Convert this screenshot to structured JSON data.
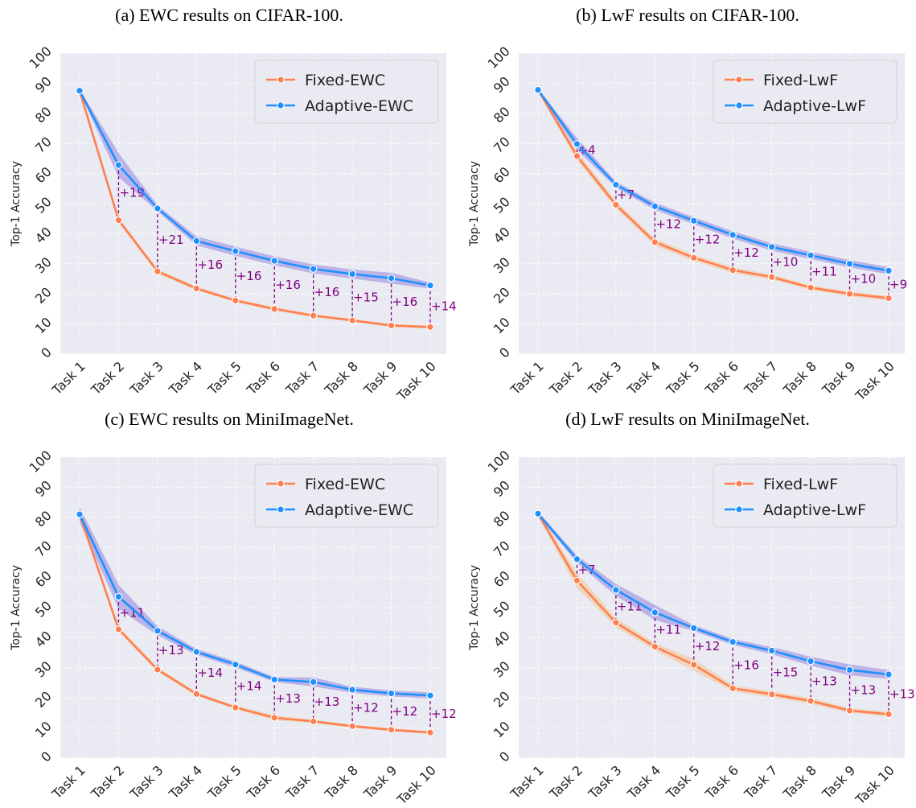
{
  "chart_data": [
    {
      "type": "line",
      "title": "(a) EWC results on CIFAR-100.",
      "xlabel": "",
      "ylabel": "Top-1 Accuracy",
      "ylim": [
        0,
        100
      ],
      "yticks": [
        "0",
        "10",
        "20",
        "30",
        "40",
        "50",
        "60",
        "70",
        "80",
        "90",
        "100"
      ],
      "categories": [
        "Task 1",
        "Task 2",
        "Task 3",
        "Task 4",
        "Task 5",
        "Task 6",
        "Task 7",
        "Task 8",
        "Task 9",
        "Task 10"
      ],
      "grid": true,
      "legend_position": "top-right",
      "colors": {
        "fixed": "#ff7f50",
        "adaptive": "#1e90ff",
        "band_fixed": "#f2c28f",
        "band_adaptive": "#8c7bdc",
        "delta": "#800080"
      },
      "series": [
        {
          "name": "Fixed-EWC",
          "values": [
            87.5,
            44.5,
            27.5,
            21.8,
            17.8,
            15.0,
            12.8,
            11.2,
            9.5,
            9.0
          ],
          "spread": [
            0,
            0.8,
            0.8,
            0.6,
            0.6,
            0.6,
            0.5,
            0.5,
            0.5,
            0.5
          ]
        },
        {
          "name": "Adaptive-EWC",
          "values": [
            87.5,
            62.8,
            48.4,
            37.6,
            34.2,
            31.0,
            28.3,
            26.6,
            25.2,
            22.8
          ],
          "spread": [
            0.5,
            4.0,
            1.0,
            1.5,
            1.5,
            1.5,
            1.5,
            1.5,
            1.8,
            1.0
          ]
        }
      ],
      "deltas": [
        "",
        "+19",
        "+21",
        "+16",
        "+16",
        "+16",
        "+16",
        "+15",
        "+16",
        "+14"
      ]
    },
    {
      "type": "line",
      "title": "(b) LwF results on CIFAR-100.",
      "xlabel": "",
      "ylabel": "Top-1 Accuracy",
      "ylim": [
        0,
        100
      ],
      "yticks": [
        "0",
        "10",
        "20",
        "30",
        "40",
        "50",
        "60",
        "70",
        "80",
        "90",
        "100"
      ],
      "categories": [
        "Task 1",
        "Task 2",
        "Task 3",
        "Task 4",
        "Task 5",
        "Task 6",
        "Task 7",
        "Task 8",
        "Task 9",
        "Task 10"
      ],
      "grid": true,
      "legend_position": "top-right",
      "colors": {
        "fixed": "#ff7f50",
        "adaptive": "#1e90ff",
        "band_fixed": "#f2c28f",
        "band_adaptive": "#8c7bdc",
        "delta": "#800080"
      },
      "series": [
        {
          "name": "Fixed-LwF",
          "values": [
            87.8,
            65.8,
            49.6,
            37.2,
            32.0,
            27.9,
            25.6,
            22.1,
            20.0,
            18.6
          ],
          "spread": [
            0.5,
            1.5,
            1.2,
            1.2,
            1.0,
            1.0,
            0.8,
            0.8,
            0.8,
            0.8
          ]
        },
        {
          "name": "Adaptive-LwF",
          "values": [
            87.8,
            69.8,
            56.3,
            49.1,
            44.3,
            39.6,
            35.6,
            32.8,
            30.0,
            27.7
          ],
          "spread": [
            0.5,
            2.0,
            1.0,
            1.2,
            1.2,
            1.2,
            1.2,
            1.2,
            1.2,
            1.2
          ]
        }
      ],
      "deltas": [
        "",
        "+4",
        "+7",
        "+12",
        "+12",
        "+12",
        "+10",
        "+11",
        "+10",
        "+9"
      ]
    },
    {
      "type": "line",
      "title": "(c) EWC results on MiniImageNet.",
      "xlabel": "",
      "ylabel": "Top-1 Accuracy",
      "ylim": [
        0,
        100
      ],
      "yticks": [
        "0",
        "10",
        "20",
        "30",
        "40",
        "50",
        "60",
        "70",
        "80",
        "90",
        "100"
      ],
      "categories": [
        "Task 1",
        "Task 2",
        "Task 3",
        "Task 4",
        "Task 5",
        "Task 6",
        "Task 7",
        "Task 8",
        "Task 9",
        "Task 10"
      ],
      "grid": true,
      "legend_position": "top-right",
      "colors": {
        "fixed": "#ff7f50",
        "adaptive": "#1e90ff",
        "band_fixed": "#f2c28f",
        "band_adaptive": "#8c7bdc",
        "delta": "#800080"
      },
      "series": [
        {
          "name": "Fixed-EWC",
          "values": [
            81.0,
            42.8,
            29.4,
            21.3,
            16.8,
            13.4,
            12.2,
            10.6,
            9.4,
            8.5
          ],
          "spread": [
            1.0,
            0.8,
            0.8,
            0.6,
            0.6,
            0.8,
            0.6,
            0.5,
            0.5,
            0.5
          ]
        },
        {
          "name": "Adaptive-EWC",
          "values": [
            81.0,
            53.6,
            42.3,
            35.3,
            31.1,
            26.1,
            25.3,
            22.7,
            21.5,
            20.8
          ],
          "spread": [
            2.5,
            4.0,
            1.5,
            1.0,
            1.0,
            0.8,
            1.5,
            1.0,
            1.0,
            1.0
          ]
        }
      ],
      "deltas": [
        "",
        "+11",
        "+13",
        "+14",
        "+14",
        "+13",
        "+13",
        "+12",
        "+12",
        "+12"
      ]
    },
    {
      "type": "line",
      "title": "(d) LwF results on MiniImageNet.",
      "xlabel": "",
      "ylabel": "Top-1 Accuracy",
      "ylim": [
        0,
        100
      ],
      "yticks": [
        "0",
        "10",
        "20",
        "30",
        "40",
        "50",
        "60",
        "70",
        "80",
        "90",
        "100"
      ],
      "categories": [
        "Task 1",
        "Task 2",
        "Task 3",
        "Task 4",
        "Task 5",
        "Task 6",
        "Task 7",
        "Task 8",
        "Task 9",
        "Task 10"
      ],
      "grid": true,
      "legend_position": "top-right",
      "colors": {
        "fixed": "#ff7f50",
        "adaptive": "#1e90ff",
        "band_fixed": "#f2c28f",
        "band_adaptive": "#8c7bdc",
        "delta": "#800080"
      },
      "series": [
        {
          "name": "Fixed-LwF",
          "values": [
            81.2,
            59.0,
            45.0,
            37.0,
            31.0,
            23.2,
            21.2,
            19.0,
            15.8,
            14.6
          ],
          "spread": [
            0.8,
            2.5,
            1.5,
            1.2,
            2.0,
            1.0,
            1.0,
            1.0,
            0.8,
            0.8
          ]
        },
        {
          "name": "Adaptive-LwF",
          "values": [
            81.2,
            66.1,
            55.9,
            48.4,
            43.2,
            38.6,
            35.7,
            32.2,
            29.3,
            27.8
          ],
          "spread": [
            0.8,
            1.2,
            2.0,
            2.5,
            1.0,
            1.0,
            1.2,
            1.5,
            1.8,
            1.5
          ]
        }
      ],
      "deltas": [
        "",
        "+7",
        "+11",
        "+11",
        "+12",
        "+16",
        "+15",
        "+13",
        "+13",
        "+13"
      ]
    }
  ]
}
